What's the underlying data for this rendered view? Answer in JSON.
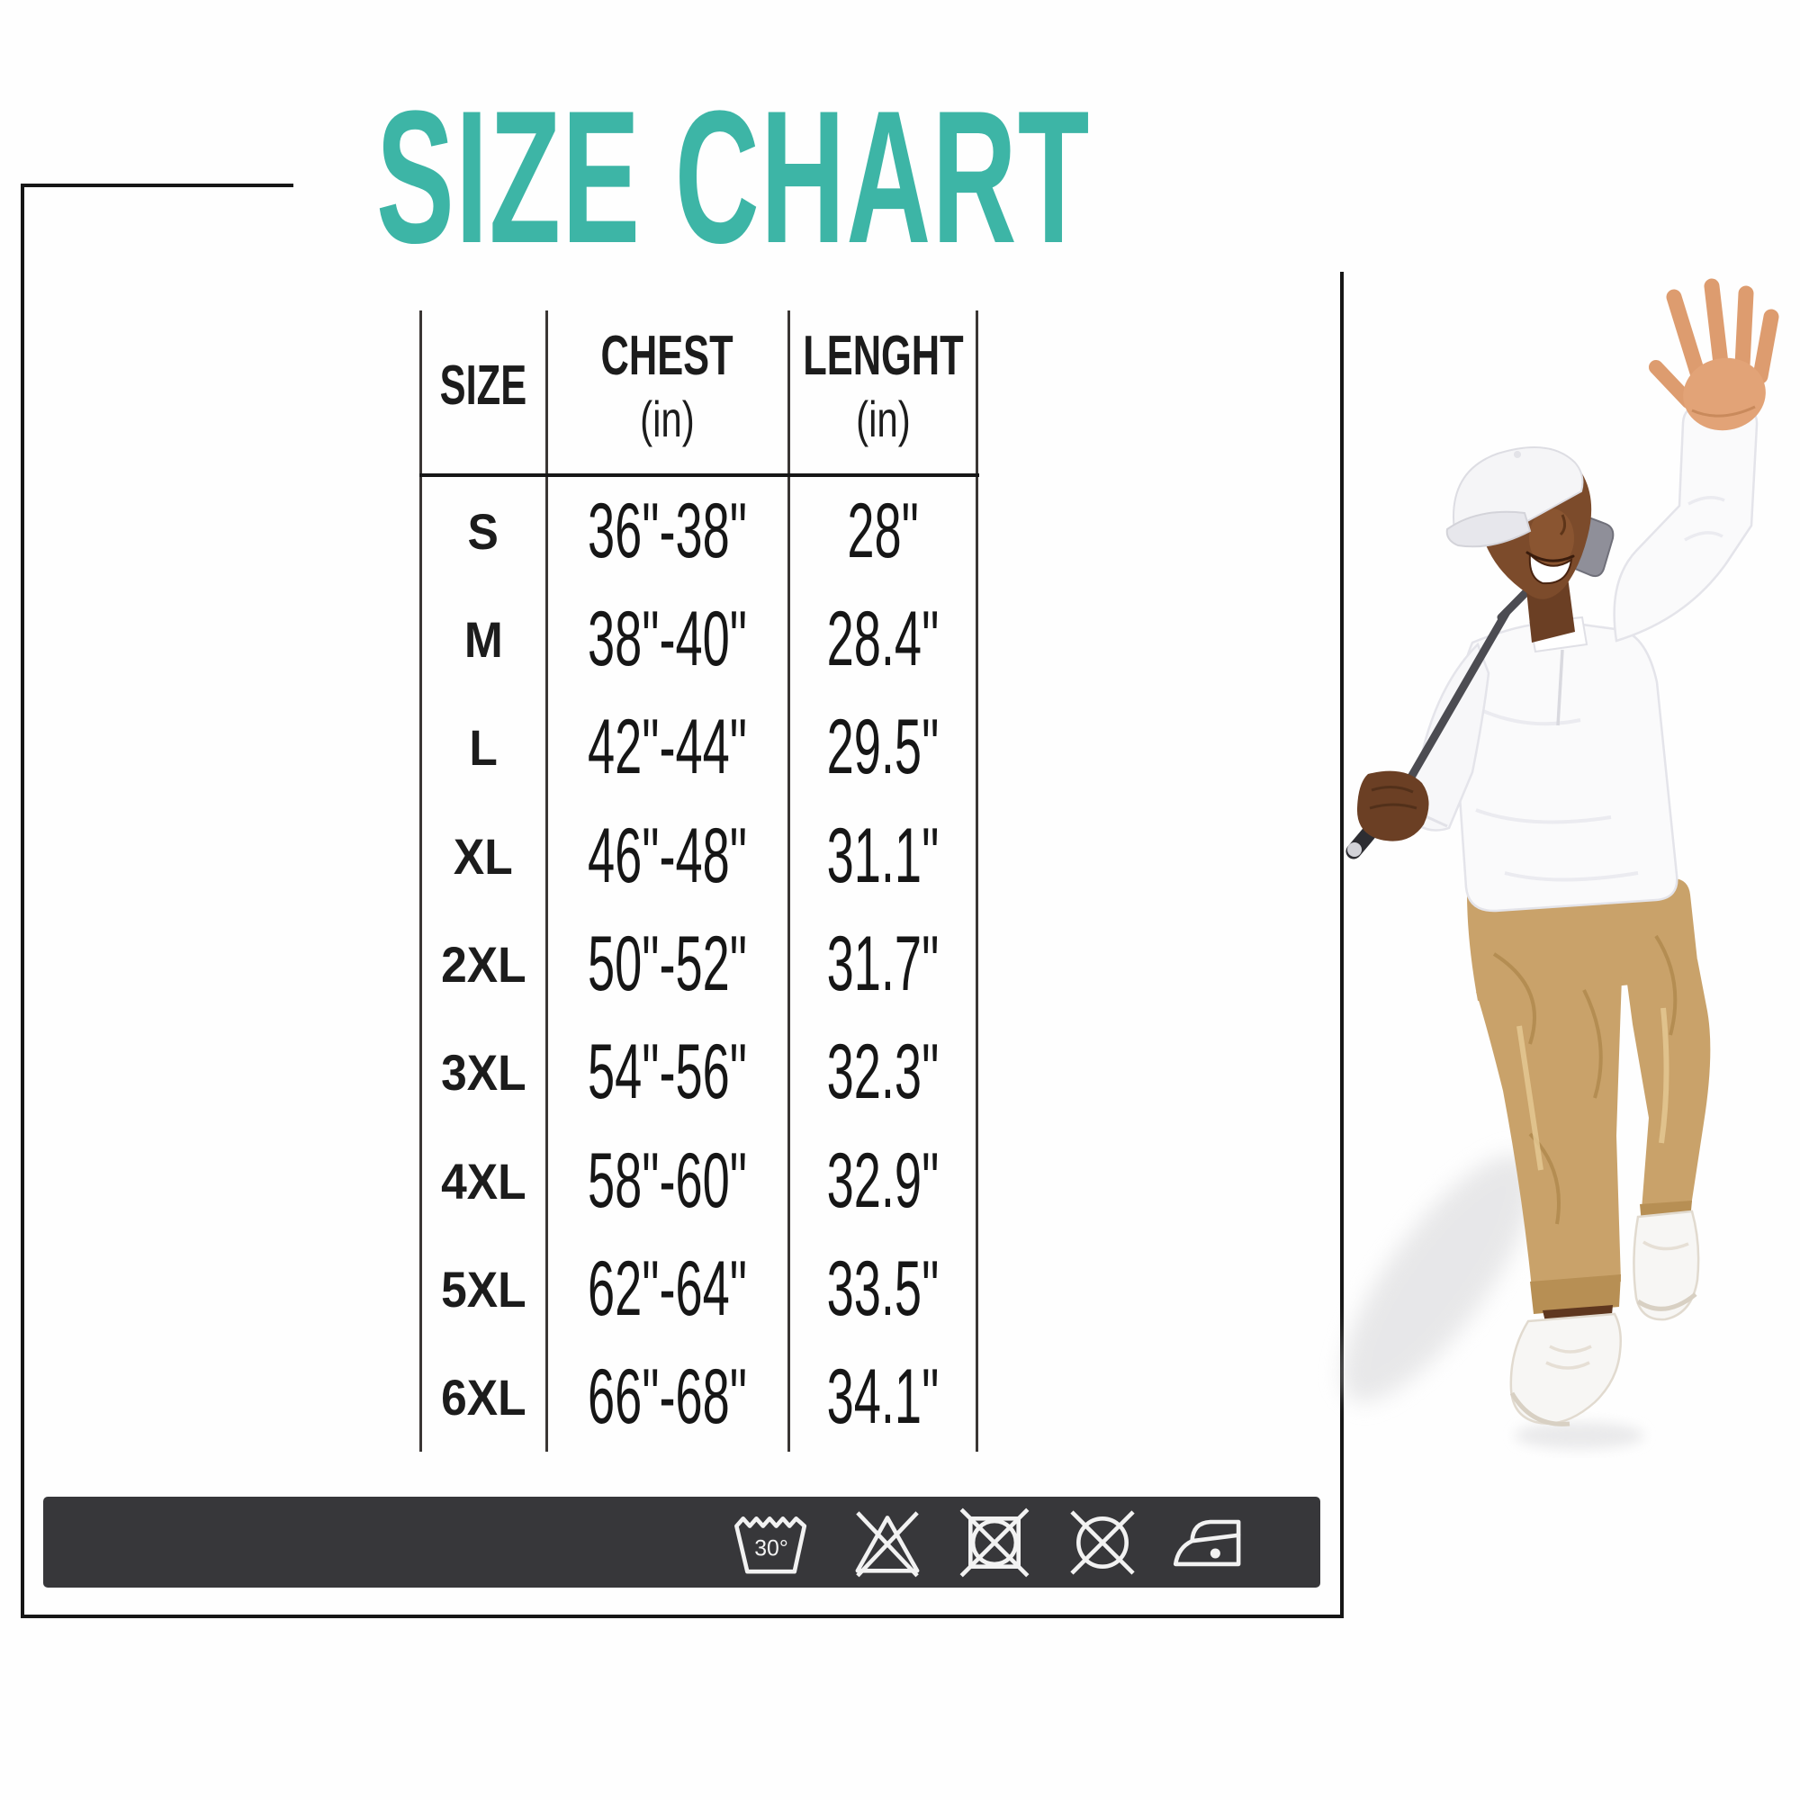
{
  "title": {
    "text": "SIZE CHART",
    "color": "#3db5a6"
  },
  "frame": {
    "border_color": "#161616"
  },
  "table": {
    "columns": [
      {
        "label": "SIZE",
        "unit": ""
      },
      {
        "label": "CHEST",
        "unit": "(in)"
      },
      {
        "label": "LENGHT",
        "unit": "(in)"
      }
    ],
    "rows": [
      {
        "size": "S",
        "chest": "36\"-38\"",
        "length": "28\""
      },
      {
        "size": "M",
        "chest": "38\"-40\"",
        "length": "28.4\""
      },
      {
        "size": "L",
        "chest": "42\"-44\"",
        "length": "29.5\""
      },
      {
        "size": "XL",
        "chest": "46\"-48\"",
        "length": "31.1\""
      },
      {
        "size": "2XL",
        "chest": "50\"-52\"",
        "length": "31.7\""
      },
      {
        "size": "3XL",
        "chest": "54\"-56\"",
        "length": "32.3\""
      },
      {
        "size": "4XL",
        "chest": "58\"-60\"",
        "length": "32.9\""
      },
      {
        "size": "5XL",
        "chest": "62\"-64\"",
        "length": "33.5\""
      },
      {
        "size": "6XL",
        "chest": "66\"-68\"",
        "length": "34.1\""
      }
    ]
  },
  "care_bar": {
    "background": "#37373a",
    "symbols": [
      {
        "name": "machine-wash-30-icon",
        "label": "30°"
      },
      {
        "name": "do-not-bleach-icon",
        "label": ""
      },
      {
        "name": "do-not-tumble-dry-icon",
        "label": ""
      },
      {
        "name": "do-not-dry-clean-icon",
        "label": ""
      },
      {
        "name": "iron-low-heat-icon",
        "label": ""
      }
    ]
  },
  "model": {
    "description": "Smiling man in white cap and white long-sleeve golf shirt with khaki jogger pants and white sneakers, holding a golf club over his shoulder and waving with raised open hand",
    "skin_color": "#7c4b2b",
    "shirt_color": "#fafafb",
    "pants_color": "#c9a26a",
    "cap_color": "#f5f5f7"
  },
  "chart_data": {
    "type": "table",
    "title": "SIZE CHART",
    "columns": [
      "SIZE",
      "CHEST (in)",
      "LENGHT (in)"
    ],
    "rows": [
      [
        "S",
        "36\"-38\"",
        "28\""
      ],
      [
        "M",
        "38\"-40\"",
        "28.4\""
      ],
      [
        "L",
        "42\"-44\"",
        "29.5\""
      ],
      [
        "XL",
        "46\"-48\"",
        "31.1\""
      ],
      [
        "2XL",
        "50\"-52\"",
        "31.7\""
      ],
      [
        "3XL",
        "54\"-56\"",
        "32.3\""
      ],
      [
        "4XL",
        "58\"-60\"",
        "32.9\""
      ],
      [
        "5XL",
        "62\"-64\"",
        "33.5\""
      ],
      [
        "6XL",
        "66\"-68\"",
        "34.1\""
      ]
    ]
  }
}
